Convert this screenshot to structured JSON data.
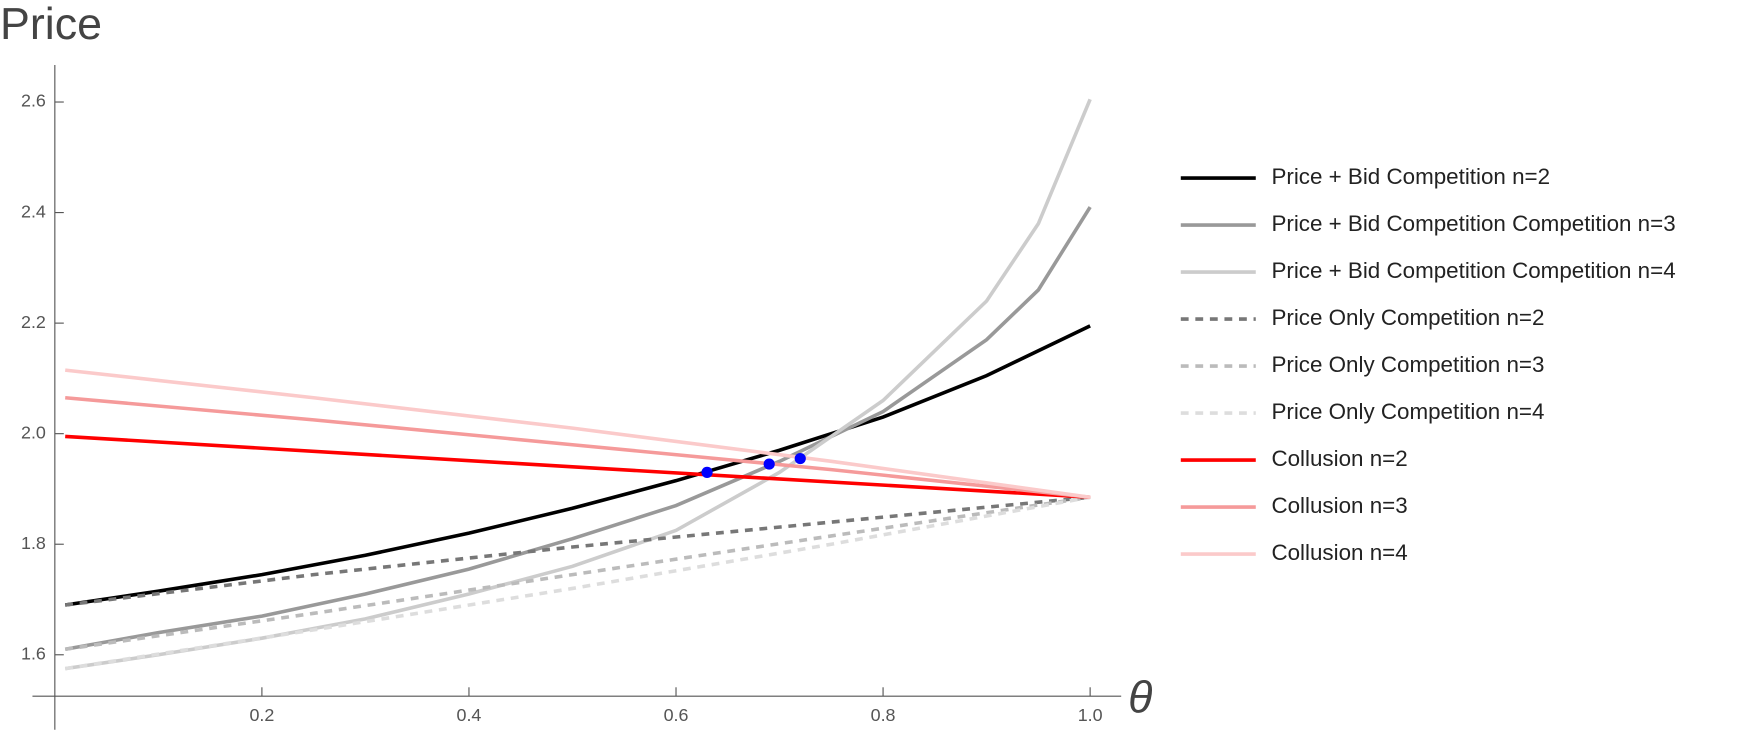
{
  "chart_data": {
    "type": "line",
    "y_label": "Price",
    "x_label": "θ",
    "xlim": [
      0,
      1.03
    ],
    "ylim": [
      1.525,
      2.667
    ],
    "xticks": [
      0.2,
      0.4,
      0.6,
      0.8,
      {
        "value": 1,
        "label": "1.0"
      }
    ],
    "yticks": [
      1.6,
      1.8,
      {
        "value": 2,
        "label": "2.0"
      },
      2.2,
      2.4,
      2.6
    ],
    "series": [
      {
        "name": "Price + Bid Competition n=2",
        "color": "#000000",
        "dashed": false,
        "x": [
          0.01,
          0.1,
          0.2,
          0.3,
          0.4,
          0.5,
          0.6,
          0.7,
          0.8,
          0.9,
          1.0
        ],
        "values": [
          1.69,
          1.715,
          1.745,
          1.78,
          1.82,
          1.865,
          1.915,
          1.97,
          2.03,
          2.105,
          2.195
        ]
      },
      {
        "name": "Price + Bid Competition Competition n=3",
        "color": "#999999",
        "dashed": false,
        "x": [
          0.01,
          0.1,
          0.2,
          0.3,
          0.4,
          0.5,
          0.6,
          0.7,
          0.8,
          0.9,
          0.95,
          1.0
        ],
        "values": [
          1.61,
          1.64,
          1.67,
          1.71,
          1.755,
          1.81,
          1.87,
          1.95,
          2.04,
          2.17,
          2.26,
          2.41
        ]
      },
      {
        "name": "Price + Bid Competition Competition n=4",
        "color": "#cccccc",
        "dashed": false,
        "x": [
          0.01,
          0.1,
          0.2,
          0.3,
          0.4,
          0.5,
          0.6,
          0.7,
          0.8,
          0.9,
          0.95,
          1.0
        ],
        "values": [
          1.575,
          1.6,
          1.63,
          1.665,
          1.71,
          1.76,
          1.825,
          1.93,
          2.06,
          2.24,
          2.38,
          2.605
        ]
      },
      {
        "name": "Price Only Competition n=2",
        "color": "#777777",
        "dashed": true,
        "x": [
          0.01,
          0.25,
          0.5,
          0.75,
          1.0
        ],
        "values": [
          1.69,
          1.745,
          1.795,
          1.84,
          1.885
        ]
      },
      {
        "name": "Price Only Competition n=3",
        "color": "#bbbbbb",
        "dashed": true,
        "x": [
          0.01,
          0.25,
          0.5,
          0.75,
          1.0
        ],
        "values": [
          1.61,
          1.675,
          1.745,
          1.815,
          1.885
        ]
      },
      {
        "name": "Price Only Competition n=4",
        "color": "#dddddd",
        "dashed": true,
        "x": [
          0.01,
          0.25,
          0.5,
          0.75,
          1.0
        ],
        "values": [
          1.575,
          1.645,
          1.72,
          1.8,
          1.885
        ]
      },
      {
        "name": "Collusion n=2",
        "color": "#ff0000",
        "dashed": false,
        "x": [
          0.01,
          0.5,
          1.0
        ],
        "values": [
          1.995,
          1.94,
          1.885
        ]
      },
      {
        "name": "Collusion n=3",
        "color": "#f59a9a",
        "dashed": false,
        "x": [
          0.01,
          0.25,
          0.5,
          0.75,
          1.0
        ],
        "values": [
          2.065,
          2.025,
          1.98,
          1.935,
          1.885
        ]
      },
      {
        "name": "Collusion n=4",
        "color": "#fbcaca",
        "dashed": false,
        "x": [
          0.01,
          0.25,
          0.5,
          0.75,
          1.0
        ],
        "values": [
          2.115,
          2.065,
          2.01,
          1.95,
          1.885
        ]
      }
    ],
    "points": {
      "color": "#0000ff",
      "x": [
        0.63,
        0.69,
        0.72
      ],
      "values": [
        1.93,
        1.945,
        1.955
      ]
    }
  }
}
